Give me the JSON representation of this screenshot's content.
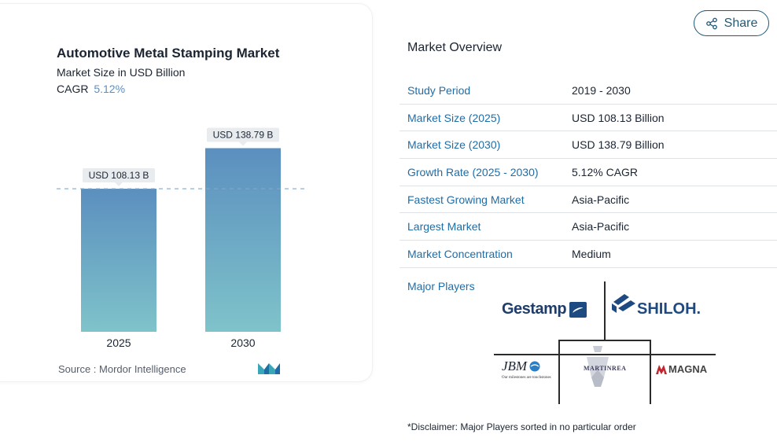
{
  "chart_data": {
    "type": "bar",
    "title": "Automotive Metal Stamping Market",
    "subtitle": "Market Size in USD Billion",
    "cagr_label": "CAGR",
    "cagr_value": "5.12%",
    "categories": [
      "2025",
      "2030"
    ],
    "values": [
      108.13,
      138.79
    ],
    "data_labels": [
      "USD 108.13 B",
      "USD 138.79 B"
    ],
    "ylim": [
      0,
      145
    ],
    "grid": false,
    "reference_line": "dashed at 2025 value",
    "colors": {
      "bar_top": "#5b8fbf",
      "bar_bottom": "#7fc3ca",
      "label_bg": "#e9ecef",
      "dash": "#7fa8c9"
    }
  },
  "source": "Source :  Mordor Intelligence",
  "share": {
    "label": "Share"
  },
  "overview": {
    "title": "Market Overview",
    "rows": [
      {
        "label": "Study Period",
        "value": "2019 - 2030"
      },
      {
        "label": "Market Size (2025)",
        "value": "USD 108.13 Billion"
      },
      {
        "label": "Market Size (2030)",
        "value": "USD 138.79 Billion"
      },
      {
        "label": "Growth Rate (2025 - 2030)",
        "value": "5.12% CAGR"
      },
      {
        "label": "Fastest Growing Market",
        "value": "Asia-Pacific"
      },
      {
        "label": "Largest Market",
        "value": "Asia-Pacific"
      },
      {
        "label": "Market Concentration",
        "value": "Medium"
      }
    ]
  },
  "players": {
    "title": "Major Players",
    "logos": {
      "gestamp": "Gestamp",
      "shiloh": "SHILOH.",
      "jbm": "JBM",
      "jbm_tagline": "Our milestones are touchstones",
      "martinrea": "MARTINREA",
      "magna": "MAGNA"
    }
  },
  "disclaimer": "*Disclaimer: Major Players sorted in no particular order"
}
